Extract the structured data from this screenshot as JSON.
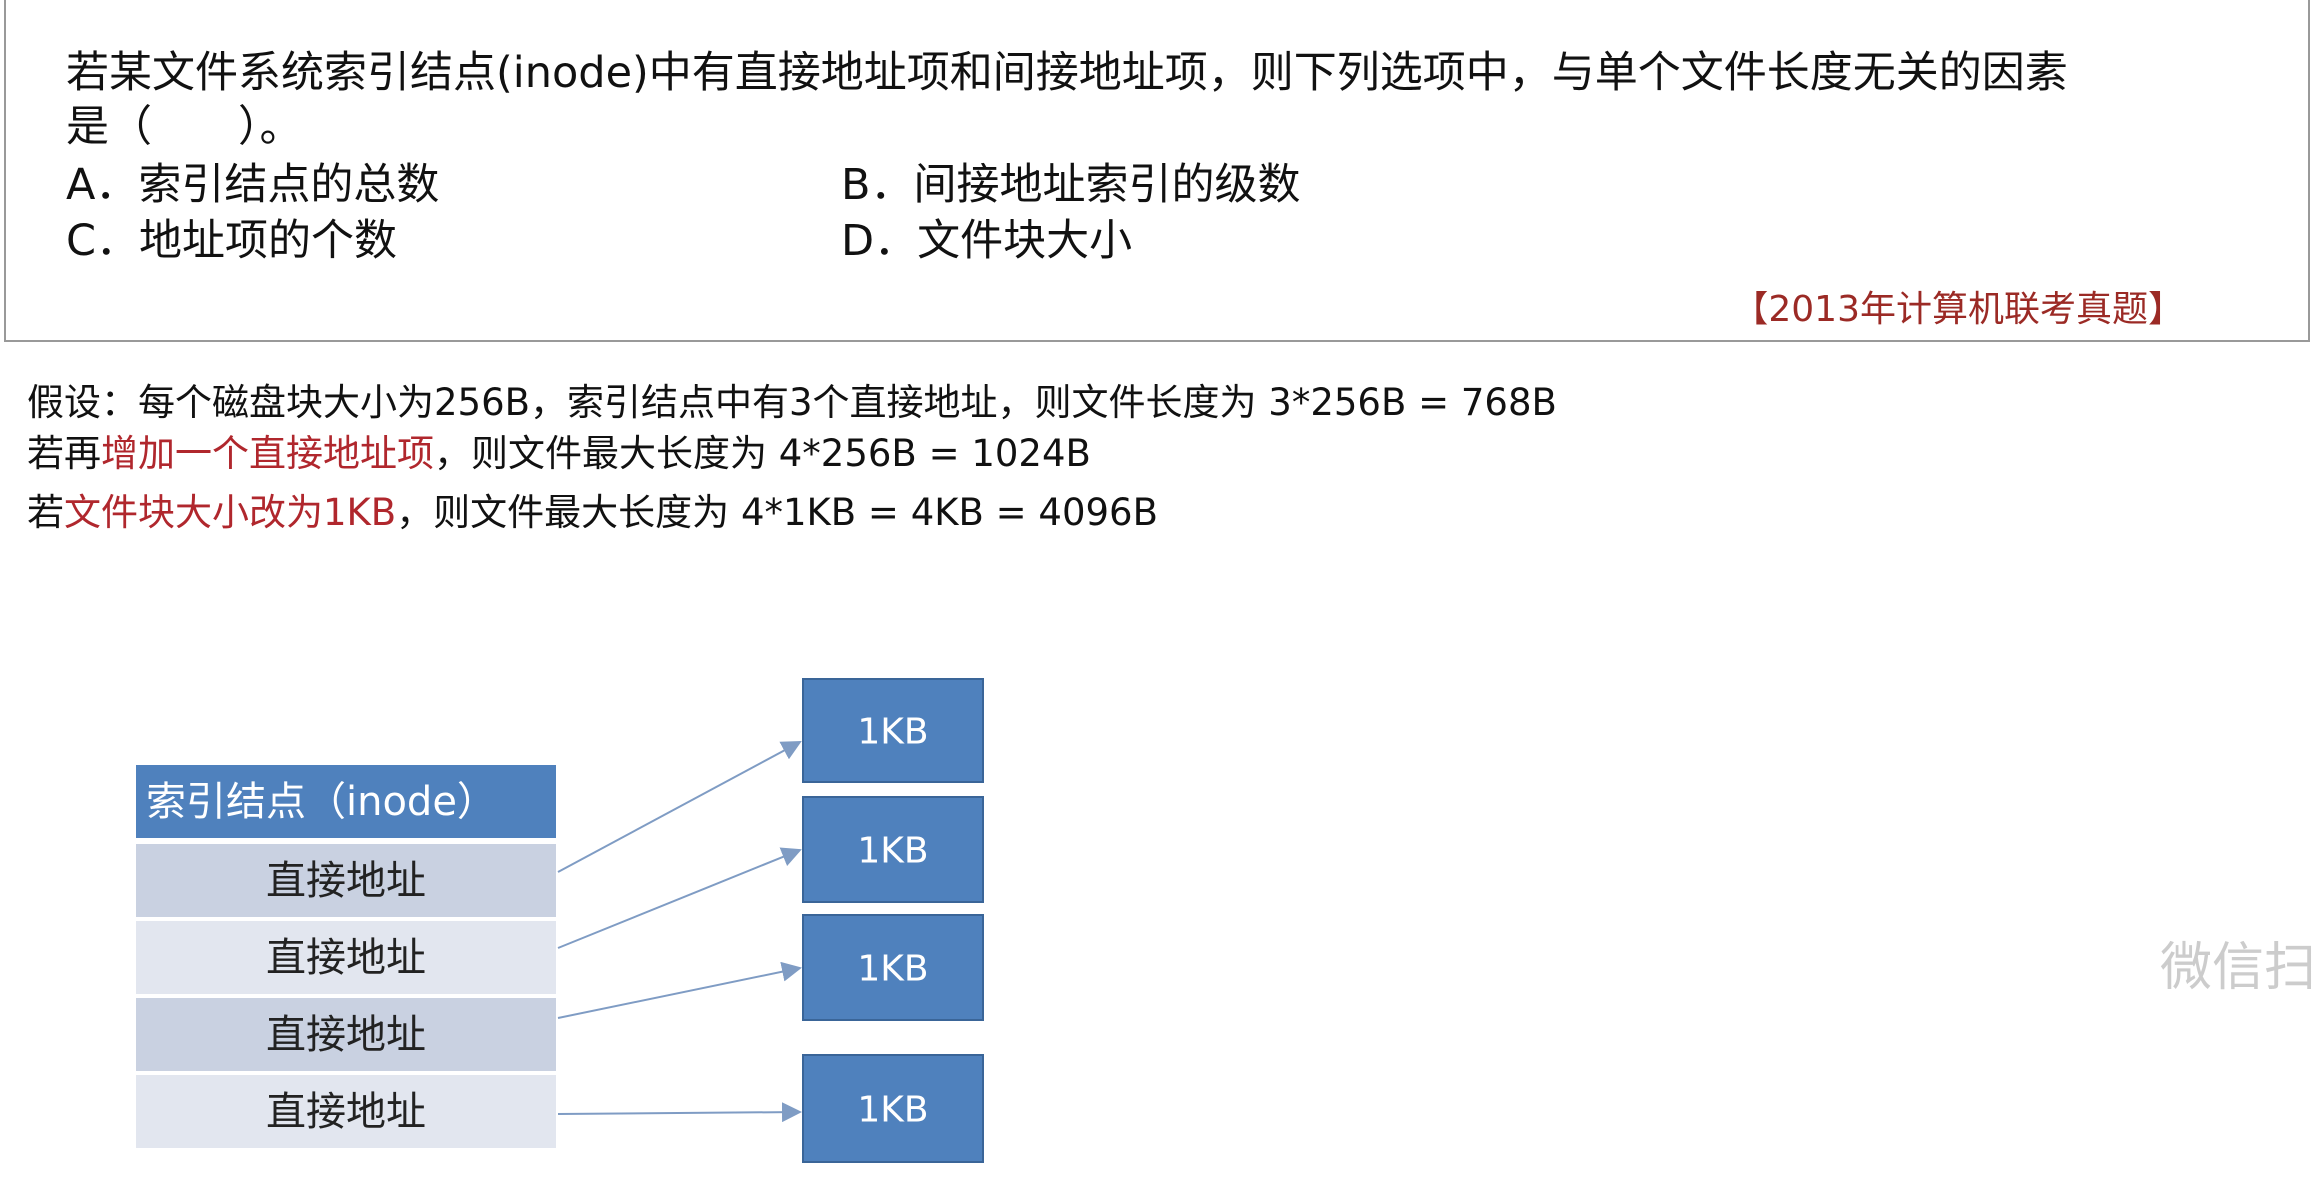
{
  "question": {
    "text_line1": "若某文件系统索引结点(inode)中有直接地址项和间接地址项，则下列选项中，与单个文件长度无关的因素",
    "text_line2": "是（　　）。",
    "options": [
      "A．索引结点的总数",
      "B．间接地址索引的级数",
      "C．地址项的个数",
      "D．文件块大小"
    ],
    "source": "【2013年计算机联考真题】"
  },
  "explanation": [
    [
      {
        "text": "假设：每个磁盘块大小为256B，索引结点中有3个直接地址，则文件长度为 3*256B = 768B"
      }
    ],
    [
      {
        "text": "若再"
      },
      {
        "text": "增加一个直接地址项",
        "color": "#b0272d"
      },
      {
        "text": "，则文件最大长度为 4*256B = 1024B"
      }
    ],
    [
      {
        "text": "若"
      },
      {
        "text": "文件块大小改为1KB",
        "color": "#b0272d"
      },
      {
        "text": "，则文件最大长度为 4*1KB = 4KB = 4096B"
      }
    ]
  ],
  "diagram": {
    "inode_title": "索引结点（inode）",
    "rows": [
      "直接地址",
      "直接地址",
      "直接地址",
      "直接地址"
    ],
    "blocks": [
      "1KB",
      "1KB",
      "1KB",
      "1KB"
    ]
  },
  "watermark": "微信扫"
}
